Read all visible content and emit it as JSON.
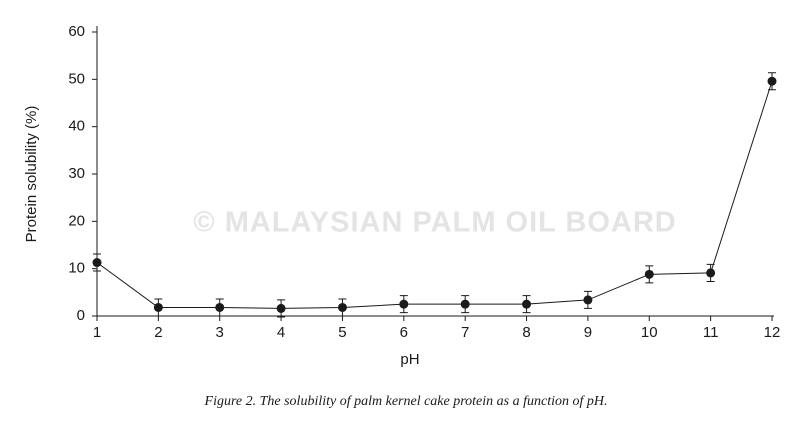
{
  "chart_data": {
    "type": "line",
    "x_label": "pH",
    "y_label": "Protein solubility (%)",
    "watermark": "© MALAYSIAN PALM OIL BOARD",
    "caption": "Figure 2. The solubility of palm kernel cake protein as a function of pH.",
    "x": [
      1,
      2,
      3,
      4,
      5,
      6,
      7,
      8,
      9,
      10,
      11,
      12
    ],
    "series": [
      {
        "color": "#1a1a1a",
        "values": [
          11.3,
          1.8,
          1.8,
          1.6,
          1.8,
          2.5,
          2.5,
          2.5,
          3.4,
          8.8,
          9.1,
          49.6
        ],
        "errors": [
          1.8,
          1.8,
          1.8,
          1.8,
          1.8,
          1.8,
          1.8,
          1.8,
          1.8,
          1.8,
          1.8,
          1.8
        ]
      }
    ],
    "xlim": [
      1,
      12
    ],
    "xticks": [
      1,
      2,
      3,
      4,
      5,
      6,
      7,
      8,
      9,
      10,
      11,
      12
    ],
    "ylim": [
      0,
      60
    ],
    "yticks": [
      0,
      10,
      20,
      30,
      40,
      50,
      60
    ]
  }
}
